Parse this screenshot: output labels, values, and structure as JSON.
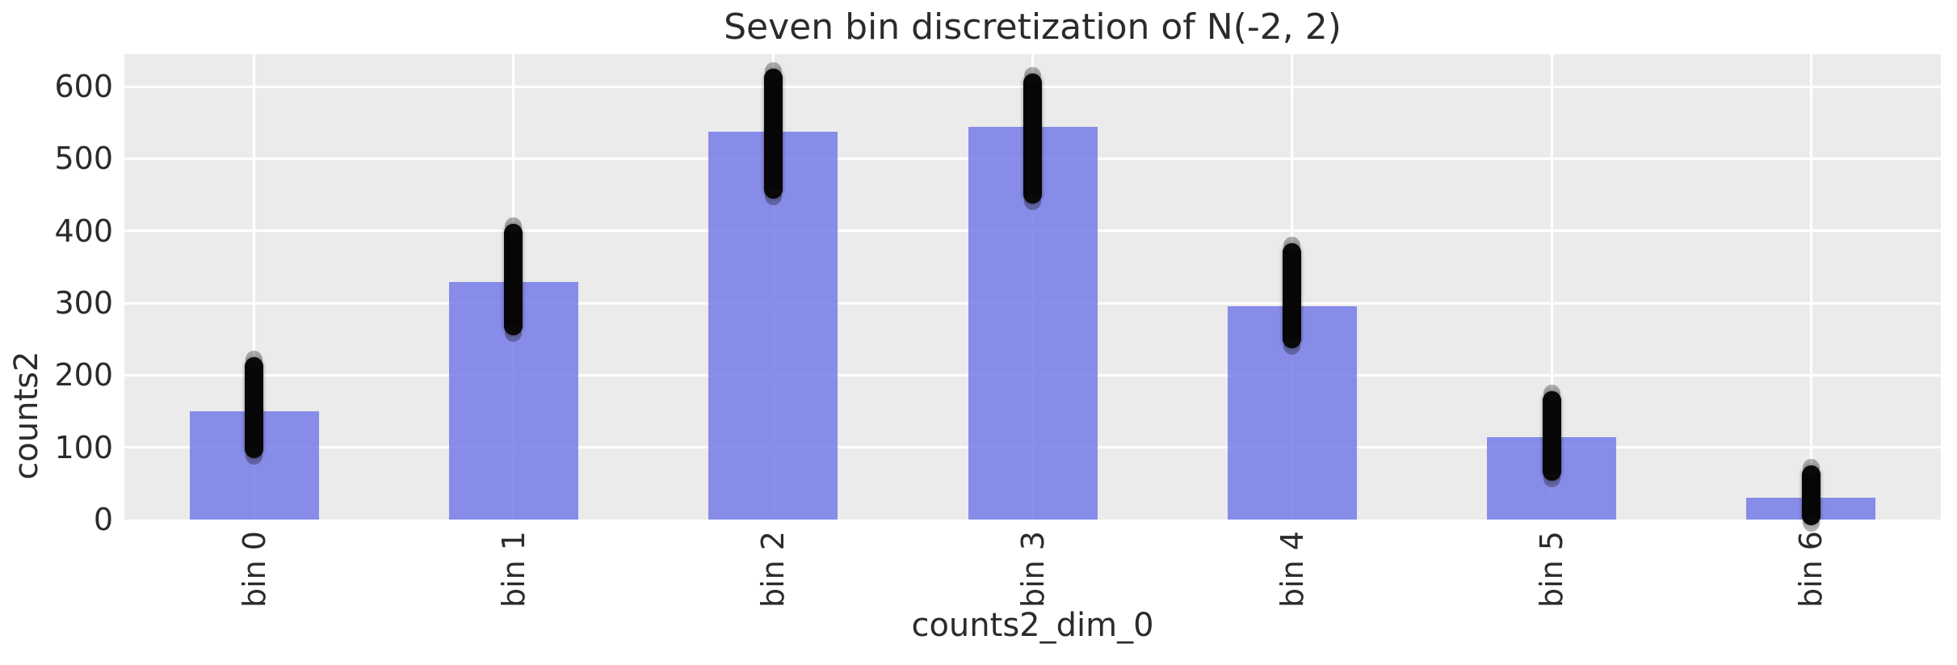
{
  "chart_data": {
    "type": "bar",
    "title": "Seven bin discretization of N(-2, 2)",
    "xlabel": "counts2_dim_0",
    "ylabel": "counts2",
    "categories": [
      "bin 0",
      "bin 1",
      "bin 2",
      "bin 3",
      "bin 4",
      "bin 5",
      "bin 6"
    ],
    "bar_values": [
      150,
      329,
      537,
      544,
      296,
      114,
      30
    ],
    "dot_overlay": {
      "description": "dense vertical column of overlapping black scatter sample dots per bin",
      "min": [
        95,
        265,
        455,
        448,
        248,
        64,
        2
      ],
      "max": [
        215,
        400,
        615,
        608,
        373,
        168,
        65
      ]
    },
    "yticks": [
      0,
      100,
      200,
      300,
      400,
      500,
      600
    ],
    "ylim": [
      0,
      645
    ],
    "grid": true,
    "legend": "none",
    "style": {
      "plot_background": "#EBEBEB",
      "grid_color": "#FFFFFF",
      "bar_color": "#757BE8",
      "bar_alpha": 0.85,
      "dot_color": "#000000",
      "text_color": "#2B2B2B",
      "figure_background": "#FFFFFF"
    }
  }
}
